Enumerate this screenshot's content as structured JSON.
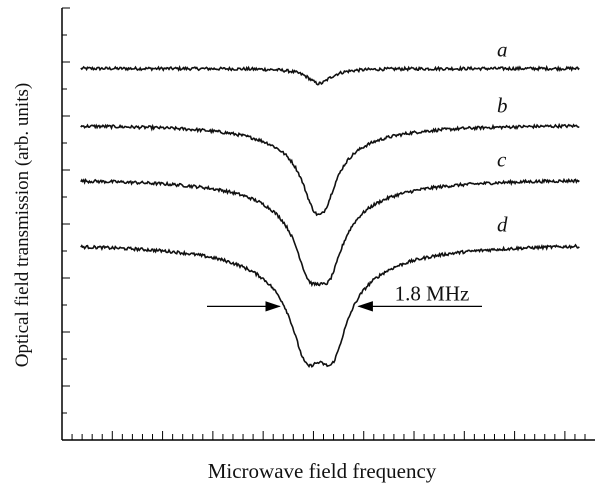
{
  "chart_data": {
    "type": "line",
    "title": "",
    "xlabel": "Microwave field frequency",
    "ylabel": "Optical field transmission  (arb. units)",
    "x_ticks_labeled": false,
    "y_ticks_labeled": false,
    "xlim": [
      -4.0,
      4.5
    ],
    "ylim": [
      0,
      10
    ],
    "grid": false,
    "legend": "none",
    "colors": {
      "trace": "#111111",
      "axes": "#000000"
    },
    "annotation": {
      "text": "1.8 MHz",
      "marks": "double-arrow pointing inward to the two dips of trace d"
    },
    "series": [
      {
        "name": "a",
        "baseline": 8.6,
        "dips": [
          {
            "center": 0.1,
            "depth": 0.35,
            "width": 0.22
          }
        ],
        "split": 0.0
      },
      {
        "name": "b",
        "baseline": 7.3,
        "dips": [
          {
            "center": 0.1,
            "depth": 1.6,
            "width": 0.55
          }
        ],
        "split": 0.18
      },
      {
        "name": "c",
        "baseline": 6.05,
        "dips": [
          {
            "center": 0.1,
            "depth": 2.15,
            "width": 0.6
          }
        ],
        "split": 0.32
      },
      {
        "name": "d",
        "baseline": 4.55,
        "dips": [
          {
            "center": 0.1,
            "depth": 2.65,
            "width": 0.65
          }
        ],
        "split": 0.42
      }
    ]
  }
}
